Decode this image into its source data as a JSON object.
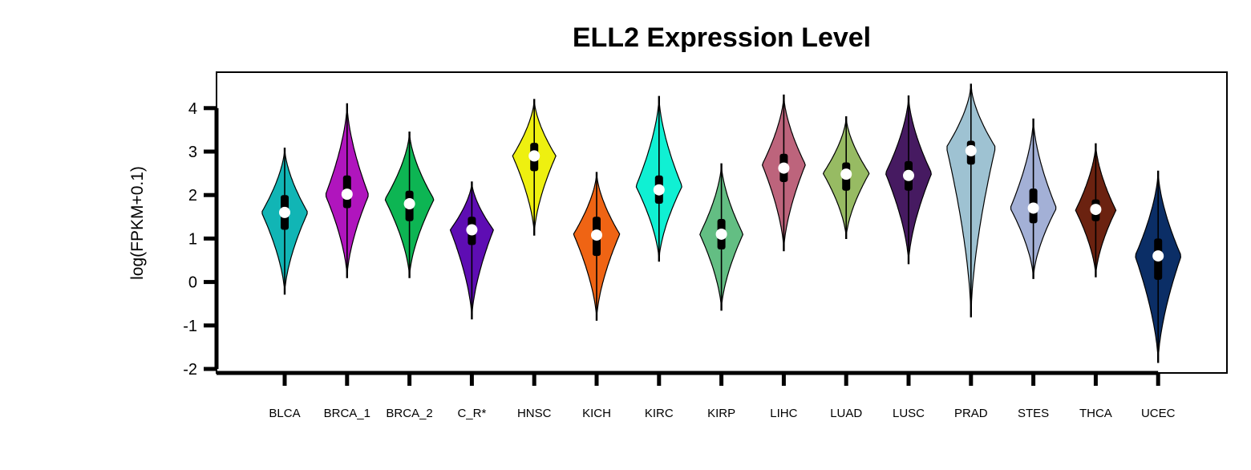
{
  "chart_data": {
    "type": "violin",
    "title": "ELL2 Expression Level",
    "ylabel": "log(FPKM+0.1)",
    "xlabel": "",
    "ylim": [
      -2,
      4
    ],
    "yticks": [
      -2,
      -1,
      0,
      1,
      2,
      3,
      4
    ],
    "grid": false,
    "legend": "none",
    "categories": [
      "BLCA",
      "BRCA_1",
      "BRCA_2",
      "C_R*",
      "HNSC",
      "KICH",
      "KIRC",
      "KIRP",
      "LIHC",
      "LUAD",
      "LUSC",
      "PRAD",
      "STES",
      "THCA",
      "UCEC"
    ],
    "series": [
      {
        "category": "BLCA",
        "color": "#11b5b5",
        "min": -0.28,
        "max": 3.08,
        "q1": 1.2,
        "q3": 2.0,
        "median": 1.6,
        "mode": 1.6,
        "width": 0.8
      },
      {
        "category": "BRCA_1",
        "color": "#b015bd",
        "min": 0.1,
        "max": 4.1,
        "q1": 1.7,
        "q3": 2.45,
        "median": 2.02,
        "mode": 2.0,
        "width": 0.75
      },
      {
        "category": "BRCA_2",
        "color": "#0db553",
        "min": 0.1,
        "max": 3.45,
        "q1": 1.4,
        "q3": 2.1,
        "median": 1.8,
        "mode": 1.9,
        "width": 0.85
      },
      {
        "category": "C_R*",
        "color": "#5e0db3",
        "min": -0.85,
        "max": 2.3,
        "q1": 0.85,
        "q3": 1.5,
        "median": 1.2,
        "mode": 1.2,
        "width": 0.75
      },
      {
        "category": "HNSC",
        "color": "#eef010",
        "min": 1.08,
        "max": 4.2,
        "q1": 2.55,
        "q3": 3.2,
        "median": 2.9,
        "mode": 2.9,
        "width": 0.75
      },
      {
        "category": "KICH",
        "color": "#ef6414",
        "min": -0.88,
        "max": 2.52,
        "q1": 0.6,
        "q3": 1.5,
        "median": 1.08,
        "mode": 1.1,
        "width": 0.8
      },
      {
        "category": "KIRC",
        "color": "#10f0d3",
        "min": 0.48,
        "max": 4.27,
        "q1": 1.8,
        "q3": 2.45,
        "median": 2.12,
        "mode": 2.2,
        "width": 0.8
      },
      {
        "category": "KIRP",
        "color": "#63be83",
        "min": -0.65,
        "max": 2.72,
        "q1": 0.75,
        "q3": 1.45,
        "median": 1.1,
        "mode": 1.1,
        "width": 0.75
      },
      {
        "category": "LIHC",
        "color": "#bd647c",
        "min": 0.72,
        "max": 4.3,
        "q1": 2.3,
        "q3": 2.95,
        "median": 2.62,
        "mode": 2.7,
        "width": 0.75
      },
      {
        "category": "LUAD",
        "color": "#97bb63",
        "min": 1.0,
        "max": 3.8,
        "q1": 2.1,
        "q3": 2.75,
        "median": 2.48,
        "mode": 2.5,
        "width": 0.8
      },
      {
        "category": "LUSC",
        "color": "#461a61",
        "min": 0.42,
        "max": 4.28,
        "q1": 2.1,
        "q3": 2.78,
        "median": 2.45,
        "mode": 2.5,
        "width": 0.8
      },
      {
        "category": "PRAD",
        "color": "#9ec2d2",
        "min": -0.8,
        "max": 4.55,
        "q1": 2.7,
        "q3": 3.25,
        "median": 3.02,
        "mode": 3.1,
        "width": 0.85
      },
      {
        "category": "STES",
        "color": "#a3b0d6",
        "min": 0.08,
        "max": 3.75,
        "q1": 1.35,
        "q3": 2.15,
        "median": 1.7,
        "mode": 1.7,
        "width": 0.8
      },
      {
        "category": "THCA",
        "color": "#6b2210",
        "min": 0.12,
        "max": 3.18,
        "q1": 1.4,
        "q3": 1.9,
        "median": 1.67,
        "mode": 1.65,
        "width": 0.7
      },
      {
        "category": "UCEC",
        "color": "#0b2e66",
        "min": -1.85,
        "max": 2.55,
        "q1": 0.05,
        "q3": 1.0,
        "median": 0.6,
        "mode": 0.6,
        "width": 0.8
      }
    ]
  }
}
